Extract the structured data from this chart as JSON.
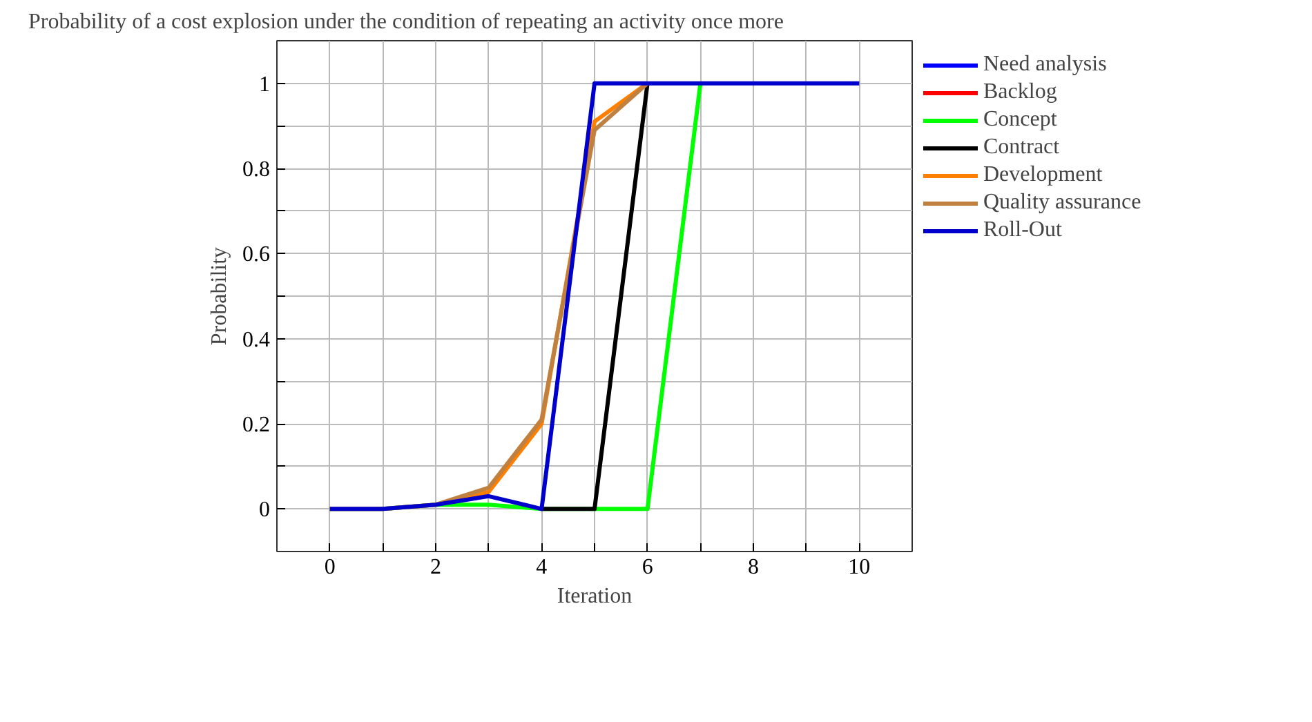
{
  "chart_data": {
    "type": "line",
    "title": "Probability of a cost explosion under the condition of repeating an activity once more",
    "xlabel": "Iteration",
    "ylabel": "Probability",
    "x": [
      0,
      1,
      2,
      3,
      4,
      5,
      6,
      7,
      8,
      9,
      10
    ],
    "series": [
      {
        "name": "Need analysis",
        "color": "#0000ff",
        "values": [
          null,
          null,
          null,
          null,
          null,
          null,
          null,
          null,
          null,
          null,
          null
        ]
      },
      {
        "name": "Backlog",
        "color": "#ff0000",
        "values": [
          null,
          null,
          null,
          null,
          null,
          null,
          null,
          null,
          null,
          null,
          null
        ]
      },
      {
        "name": "Concept",
        "color": "#00ff00",
        "values": [
          0,
          0,
          0.01,
          0.01,
          0,
          0,
          0,
          1,
          null,
          null,
          null
        ]
      },
      {
        "name": "Contract",
        "color": "#000000",
        "values": [
          null,
          null,
          null,
          null,
          0,
          0,
          1,
          null,
          null,
          null,
          null
        ]
      },
      {
        "name": "Development",
        "color": "#ff8000",
        "values": [
          0,
          0,
          0.01,
          0.04,
          0.2,
          0.91,
          1,
          null,
          null,
          null,
          null
        ]
      },
      {
        "name": "Quality assurance",
        "color": "#bf8040",
        "values": [
          0,
          0,
          0.01,
          0.05,
          0.21,
          0.89,
          1,
          null,
          null,
          null,
          null
        ]
      },
      {
        "name": "Roll-Out",
        "color": "#0000cc",
        "values": [
          0,
          0,
          0.01,
          0.03,
          0,
          1,
          1,
          1,
          1,
          1,
          1
        ]
      }
    ],
    "xlim": [
      -1,
      11
    ],
    "ylim": [
      -0.1,
      1.1
    ],
    "xticks": [
      0,
      {
        "value": 1,
        "label": null
      },
      2,
      {
        "value": 3,
        "label": null
      },
      4,
      {
        "value": 5,
        "label": null
      },
      6,
      {
        "value": 7,
        "label": null
      },
      8,
      {
        "value": 9,
        "label": null
      },
      10
    ],
    "yticks": [
      0,
      {
        "value": 0.1,
        "label": null
      },
      0.2,
      {
        "value": 0.3,
        "label": null
      },
      0.4,
      {
        "value": 0.5,
        "label": null
      },
      0.6,
      {
        "value": 0.7,
        "label": null
      },
      0.8,
      {
        "value": 0.9,
        "label": null
      },
      1
    ],
    "grid": true,
    "legend": "right",
    "marker": "none",
    "line_style": "solid"
  }
}
